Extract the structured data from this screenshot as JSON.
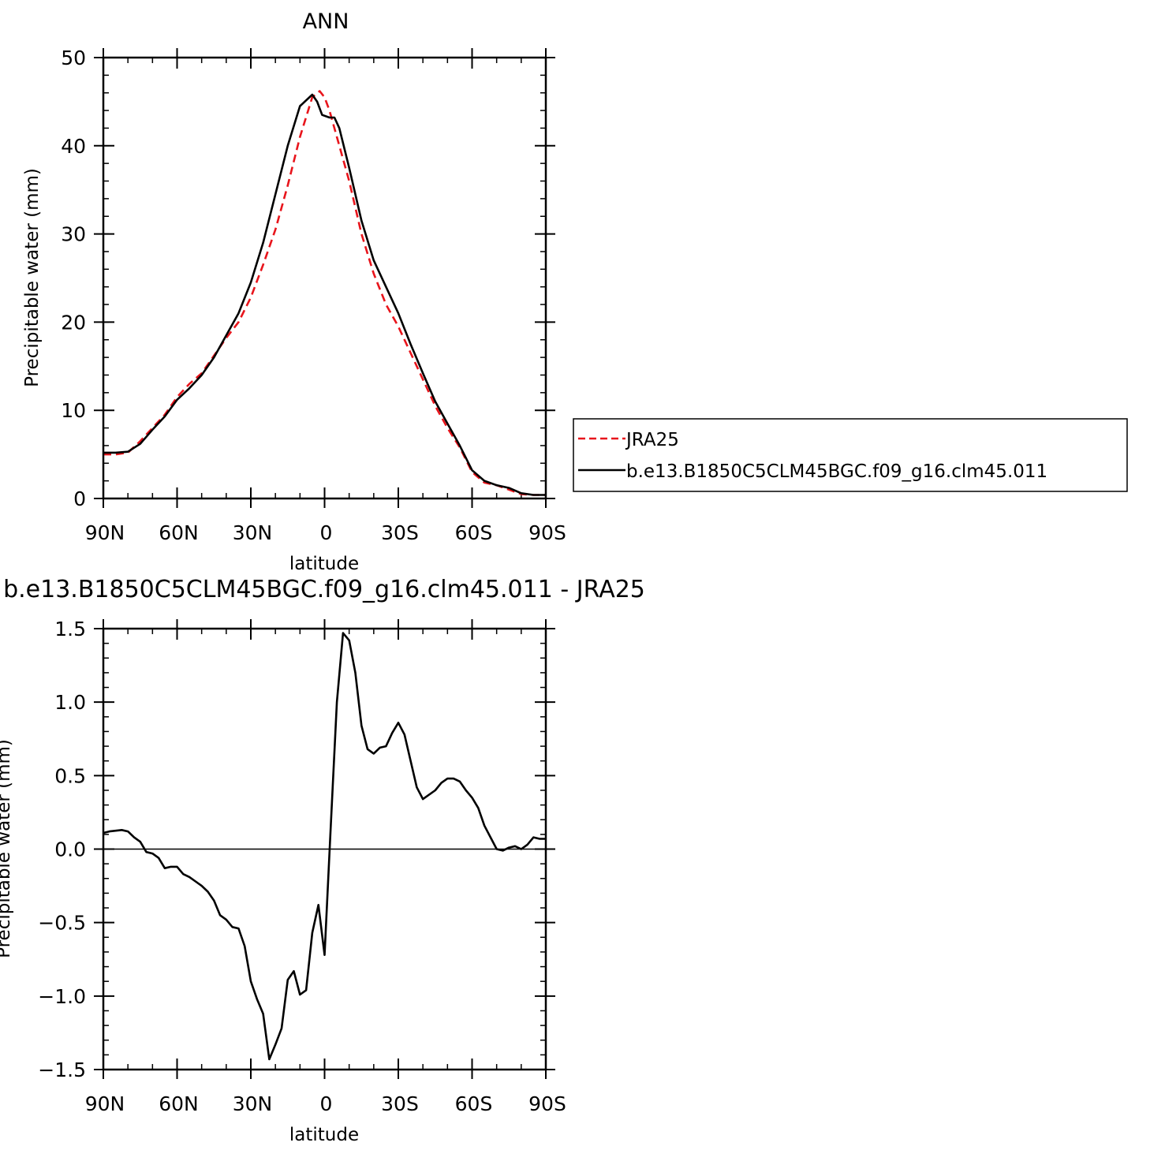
{
  "chart_data": [
    {
      "type": "line",
      "title": "ANN",
      "xlabel": "latitude",
      "ylabel": "Precipitable water (mm)",
      "xlim": [
        90,
        -90
      ],
      "ylim": [
        0,
        50
      ],
      "xticks": [
        90,
        60,
        30,
        0,
        -30,
        -60,
        -90
      ],
      "xtick_labels": [
        "90N",
        "60N",
        "30N",
        "0",
        "30S",
        "60S",
        "90S"
      ],
      "yticks": [
        0,
        10,
        20,
        30,
        40,
        50
      ],
      "ytick_labels": [
        "0",
        "10",
        "20",
        "30",
        "40",
        "50"
      ],
      "grid": false,
      "legend": "right",
      "series": [
        {
          "name": "JRA25",
          "color": "#e8151c",
          "style": "dashed",
          "x": [
            90,
            85,
            80,
            75,
            70,
            65,
            60,
            55,
            50,
            45,
            40,
            35,
            30,
            25,
            20,
            15,
            10,
            5,
            2,
            0,
            -2,
            -5,
            -10,
            -15,
            -20,
            -25,
            -30,
            -35,
            -40,
            -45,
            -50,
            -55,
            -60,
            -65,
            -70,
            -75,
            -80,
            -85,
            -90
          ],
          "values": [
            5.0,
            5.0,
            5.2,
            6.5,
            8.0,
            9.5,
            11.5,
            13.0,
            14.2,
            16.2,
            18.2,
            20.0,
            22.8,
            26.5,
            30.5,
            35.5,
            41.0,
            45.5,
            46.2,
            45.5,
            44.0,
            41.0,
            36.0,
            30.0,
            25.5,
            22.0,
            19.5,
            16.5,
            13.5,
            10.5,
            8.0,
            5.8,
            3.0,
            1.8,
            1.5,
            1.0,
            0.5,
            0.4,
            0.4
          ]
        },
        {
          "name": "b.e13.B1850C5CLM45BGC.f09_g16.clm45.011",
          "color": "#000000",
          "style": "solid",
          "x": [
            90,
            85,
            80,
            75,
            70,
            65,
            60,
            55,
            50,
            45,
            40,
            35,
            30,
            25,
            20,
            15,
            10,
            5,
            3,
            1,
            -2,
            -4,
            -6,
            -10,
            -15,
            -20,
            -25,
            -30,
            -35,
            -40,
            -45,
            -50,
            -55,
            -60,
            -65,
            -70,
            -75,
            -80,
            -85,
            -90
          ],
          "values": [
            5.2,
            5.2,
            5.3,
            6.2,
            7.8,
            9.3,
            11.2,
            12.5,
            14.0,
            16.0,
            18.5,
            21.0,
            24.5,
            29.0,
            34.5,
            40.0,
            44.5,
            45.8,
            45.0,
            43.5,
            43.2,
            43.2,
            42.0,
            37.5,
            31.5,
            27.0,
            24.0,
            21.0,
            17.5,
            14.2,
            11.0,
            8.5,
            6.0,
            3.2,
            2.0,
            1.5,
            1.2,
            0.6,
            0.4,
            0.4
          ]
        }
      ]
    },
    {
      "type": "line",
      "title": "b.e13.B1850C5CLM45BGC.f09_g16.clm45.011 - JRA25",
      "xlabel": "latitude",
      "ylabel": "Precipitable water (mm)",
      "xlim": [
        90,
        -90
      ],
      "ylim": [
        -1.5,
        1.5
      ],
      "xticks": [
        90,
        60,
        30,
        0,
        -30,
        -60,
        -90
      ],
      "xtick_labels": [
        "90N",
        "60N",
        "30N",
        "0",
        "30S",
        "60S",
        "90S"
      ],
      "yticks": [
        -1.5,
        -1.0,
        -0.5,
        0.0,
        0.5,
        1.0,
        1.5
      ],
      "ytick_labels": [
        "-1.5",
        "-1.0",
        "-0.5",
        "0.0",
        "0.5",
        "1.0",
        "1.5"
      ],
      "grid": false,
      "series": [
        {
          "color": "#000000",
          "style": "solid",
          "x": [
            90,
            87.5,
            82.5,
            80,
            77.5,
            75,
            72.5,
            70,
            67.5,
            65,
            62.5,
            60,
            57.5,
            55,
            52.5,
            50,
            47.5,
            45,
            42.5,
            40,
            37.5,
            35,
            32.5,
            30,
            27.5,
            25,
            22.5,
            20,
            17.5,
            15,
            12.5,
            10,
            7.5,
            5,
            2.5,
            0,
            -2.5,
            -5,
            -7.5,
            -10,
            -12.5,
            -15,
            -17.5,
            -20,
            -22.5,
            -25,
            -27.5,
            -30,
            -32.5,
            -35,
            -37.5,
            -40,
            -45,
            -47.5,
            -50,
            -52.5,
            -55,
            -57.5,
            -60,
            -62.5,
            -65,
            -67.5,
            -70,
            -72.5,
            -75,
            -77.5,
            -80,
            -82.5,
            -85,
            -87.5,
            -90
          ],
          "values": [
            0.11,
            0.12,
            0.13,
            0.12,
            0.08,
            0.05,
            -0.02,
            -0.03,
            -0.06,
            -0.13,
            -0.12,
            -0.12,
            -0.17,
            -0.19,
            -0.22,
            -0.25,
            -0.29,
            -0.35,
            -0.45,
            -0.48,
            -0.53,
            -0.54,
            -0.66,
            -0.9,
            -1.02,
            -1.12,
            -1.43,
            -1.33,
            -1.22,
            -0.89,
            -0.83,
            -0.99,
            -0.96,
            -0.57,
            -0.38,
            -0.72,
            0.15,
            1.0,
            1.47,
            1.42,
            1.2,
            0.84,
            0.68,
            0.65,
            0.69,
            0.7,
            0.79,
            0.86,
            0.78,
            0.6,
            0.42,
            0.34,
            0.4,
            0.45,
            0.48,
            0.48,
            0.46,
            0.4,
            0.35,
            0.28,
            0.16,
            0.08,
            0.0,
            -0.01,
            0.01,
            0.02,
            0.0,
            0.03,
            0.08,
            0.07,
            0.07
          ]
        }
      ]
    }
  ]
}
